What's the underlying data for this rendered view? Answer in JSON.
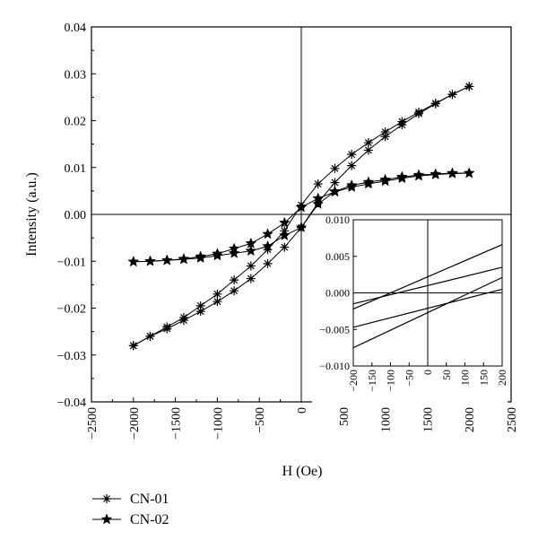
{
  "chart_data": {
    "type": "line",
    "xlabel": "H (Oe)",
    "ylabel": "Intensity (a.u.)",
    "xlim": [
      -2500,
      2500
    ],
    "ylim": [
      -0.04,
      0.04
    ],
    "xticks": [
      -2500,
      -2000,
      -1500,
      -1000,
      -500,
      0,
      500,
      1000,
      1500,
      2000,
      2500
    ],
    "yticks": [
      -0.04,
      -0.03,
      -0.02,
      -0.01,
      0.0,
      0.01,
      0.02,
      0.03,
      0.04
    ],
    "xtick_labels": [
      "−2500",
      "−2000",
      "−1500",
      "−1000",
      "−500",
      "0",
      "500",
      "1000",
      "1500",
      "2000",
      "2500"
    ],
    "ytick_labels": [
      "−0.04",
      "−0.03",
      "−0.02",
      "−0.01",
      "0.00",
      "0.01",
      "0.02",
      "0.03",
      "0.04"
    ],
    "legend_position": "bottom-left, below plot",
    "series": [
      {
        "name": "CN-01",
        "marker": "asterisk",
        "branches": [
          {
            "x": [
              -2000,
              -1800,
              -1600,
              -1400,
              -1200,
              -1000,
              -800,
              -600,
              -400,
              -200,
              0,
              200,
              400,
              600,
              800,
              1000,
              1200,
              1400,
              1600,
              1800,
              2000
            ],
            "y": [
              -0.028,
              -0.026,
              -0.024,
              -0.022,
              -0.0195,
              -0.017,
              -0.014,
              -0.011,
              -0.0075,
              -0.0035,
              0.002,
              0.0065,
              0.0098,
              0.0128,
              0.0153,
              0.0176,
              0.0198,
              0.0218,
              0.0237,
              0.0256,
              0.0273
            ]
          },
          {
            "x": [
              2000,
              1800,
              1600,
              1400,
              1200,
              1000,
              800,
              600,
              400,
              200,
              0,
              -200,
              -400,
              -600,
              -800,
              -1000,
              -1200,
              -1400,
              -1600,
              -1800,
              -2000
            ],
            "y": [
              0.0273,
              0.0256,
              0.0236,
              0.0215,
              0.0191,
              0.0166,
              0.0137,
              0.0104,
              0.0068,
              0.0025,
              -0.0028,
              -0.007,
              -0.0105,
              -0.0137,
              -0.0163,
              -0.0186,
              -0.0207,
              -0.0226,
              -0.0244,
              -0.026,
              -0.028
            ]
          }
        ]
      },
      {
        "name": "CN-02",
        "marker": "star",
        "branches": [
          {
            "x": [
              -2000,
              -1800,
              -1600,
              -1400,
              -1200,
              -1000,
              -800,
              -600,
              -400,
              -200,
              0,
              200,
              400,
              600,
              800,
              1000,
              1200,
              1400,
              1600,
              1800,
              2000
            ],
            "y": [
              -0.0101,
              -0.01,
              -0.0098,
              -0.0095,
              -0.009,
              -0.0084,
              -0.0073,
              -0.0062,
              -0.0042,
              -0.0018,
              0.0015,
              0.0034,
              0.0048,
              0.0058,
              0.0065,
              0.0071,
              0.0077,
              0.0082,
              0.0085,
              0.0087,
              0.0088
            ]
          },
          {
            "x": [
              2000,
              1800,
              1600,
              1400,
              1200,
              1000,
              800,
              600,
              400,
              200,
              0,
              -200,
              -400,
              -600,
              -800,
              -1000,
              -1200,
              -1400,
              -1600,
              -1800,
              -2000
            ],
            "y": [
              0.0088,
              0.0088,
              0.0086,
              0.0084,
              0.008,
              0.0074,
              0.0069,
              0.0062,
              0.0049,
              0.0022,
              -0.0028,
              -0.0045,
              -0.0068,
              -0.0078,
              -0.0083,
              -0.0088,
              -0.0093,
              -0.0096,
              -0.0098,
              -0.01,
              -0.0101
            ]
          }
        ]
      }
    ],
    "inset": {
      "type": "line",
      "xlim": [
        -200,
        200
      ],
      "ylim": [
        -0.01,
        0.01
      ],
      "xticks": [
        -200,
        -150,
        -100,
        -50,
        0,
        50,
        100,
        150,
        200
      ],
      "yticks": [
        -0.01,
        -0.005,
        0.0,
        0.005,
        0.01
      ],
      "xtick_labels": [
        "−200",
        "−150",
        "−100",
        "−50",
        "0",
        "50",
        "100",
        "150",
        "200"
      ],
      "ytick_labels": [
        "−0.010",
        "−0.005",
        "0.000",
        "0.005",
        "0.010"
      ],
      "lines": [
        {
          "x": [
            -200,
            200
          ],
          "y": [
            -0.0022,
            0.0066
          ]
        },
        {
          "x": [
            -200,
            200
          ],
          "y": [
            -0.0075,
            0.0021
          ]
        },
        {
          "x": [
            -200,
            200
          ],
          "y": [
            -0.0015,
            0.0035
          ]
        },
        {
          "x": [
            -200,
            200
          ],
          "y": [
            -0.0047,
            0.0005
          ]
        }
      ]
    }
  }
}
